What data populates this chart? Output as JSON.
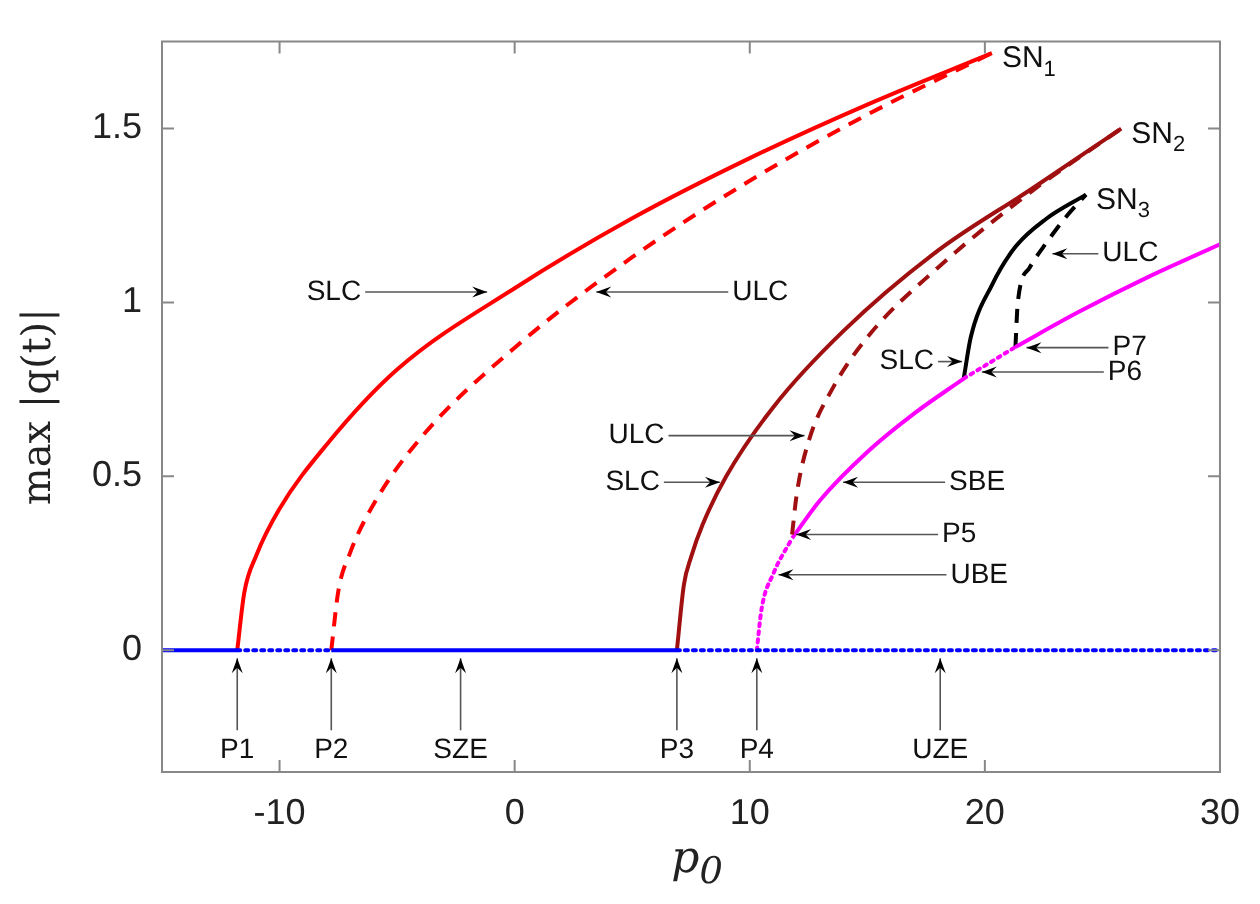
{
  "chart_data": {
    "type": "line",
    "xlabel": "p$_{0}$",
    "ylabel": "max |q(t)|",
    "xlim": [
      -15,
      30
    ],
    "ylim": [
      -0.35,
      1.75
    ],
    "xticks": [
      -10,
      0,
      10,
      20,
      30
    ],
    "yticks": [
      0,
      0.5,
      1,
      1.5
    ],
    "marker": "none",
    "legend": false,
    "series": [
      {
        "color": "#0000ff",
        "line_style": "solid",
        "x": [
          -15,
          -11.8
        ],
        "values": [
          0,
          0
        ]
      },
      {
        "color": "#0000ff",
        "line_style": "dotted",
        "x": [
          -11.8,
          -7.8
        ],
        "values": [
          0,
          0
        ]
      },
      {
        "color": "#0000ff",
        "line_style": "solid",
        "x": [
          -7.8,
          6.9
        ],
        "values": [
          0,
          0
        ]
      },
      {
        "color": "#0000ff",
        "line_style": "dotted",
        "x": [
          6.9,
          30
        ],
        "values": [
          0,
          0
        ]
      },
      {
        "color": "#ff0000",
        "line_style": "solid",
        "x": [
          -11.8,
          -11.5,
          -11,
          -10,
          -8,
          -5,
          0,
          5,
          10,
          15,
          20.3
        ],
        "values": [
          0,
          0.166,
          0.271,
          0.407,
          0.591,
          0.807,
          1.041,
          1.242,
          1.415,
          1.569,
          1.717
        ]
      },
      {
        "color": "#ff0000",
        "line_style": "dashed",
        "x": [
          -7.8,
          -7.5,
          -7,
          -6,
          -4,
          0,
          5,
          10,
          15,
          20.3
        ],
        "values": [
          0,
          0.17,
          0.28,
          0.42,
          0.61,
          0.87,
          1.13,
          1.35,
          1.54,
          1.717
        ]
      },
      {
        "color": "#a01010",
        "line_style": "solid",
        "x": [
          6.9,
          7.2,
          7.5,
          8,
          9,
          11,
          14,
          18,
          22,
          25.8
        ],
        "values": [
          0,
          0.189,
          0.267,
          0.362,
          0.5,
          0.699,
          0.919,
          1.149,
          1.327,
          1.5
        ]
      },
      {
        "color": "#a01010",
        "line_style": "dashed",
        "x": [
          11.8,
          12,
          12.5,
          13.5,
          15,
          18,
          22,
          25.8
        ],
        "values": [
          0.333,
          0.45,
          0.6,
          0.75,
          0.9,
          1.1,
          1.32,
          1.5
        ]
      },
      {
        "color": "#ff00ff",
        "line_style": "dotted",
        "x": [
          10.3,
          10.5,
          11,
          11.8
        ],
        "values": [
          0,
          0.118,
          0.22,
          0.322
        ]
      },
      {
        "color": "#ff00ff",
        "line_style": "solid",
        "x": [
          11.8,
          13,
          15,
          17,
          19.1
        ],
        "values": [
          0.322,
          0.432,
          0.57,
          0.681,
          0.781
        ]
      },
      {
        "color": "#ff00ff",
        "line_style": "dotted",
        "x": [
          19.1,
          21.3
        ],
        "values": [
          0.781,
          0.872
        ]
      },
      {
        "color": "#ff00ff",
        "line_style": "solid",
        "x": [
          21.3,
          24,
          27,
          30
        ],
        "values": [
          0.872,
          0.973,
          1.075,
          1.167
        ]
      },
      {
        "color": "#000000",
        "line_style": "solid",
        "x": [
          19.1,
          19.4,
          20.3,
          21.3,
          22.6,
          24.3
        ],
        "values": [
          0.781,
          0.9,
          1.05,
          1.16,
          1.24,
          1.31
        ]
      },
      {
        "color": "#000000",
        "line_style": "dashed",
        "x": [
          21.3,
          21.4,
          21.9,
          22.6,
          23.5,
          24.3
        ],
        "values": [
          0.872,
          1.0,
          1.1,
          1.17,
          1.25,
          1.31
        ]
      }
    ],
    "annotations": [
      {
        "text": "SN$_{1}$",
        "x": 20.3,
        "y": 1.717
      },
      {
        "text": "SN$_{2}$",
        "x": 25.8,
        "y": 1.5
      },
      {
        "text": "SN$_{3}$",
        "x": 24.3,
        "y": 1.31
      },
      {
        "text": "SLC",
        "x": -1,
        "y": 1.03
      },
      {
        "text": "ULC",
        "x": 3.3,
        "y": 1.03
      },
      {
        "text": "ULC",
        "x": 12.5,
        "y": 0.617
      },
      {
        "text": "SLC",
        "x": 8.9,
        "y": 0.483
      },
      {
        "text": "SBE",
        "x": 13.8,
        "y": 0.483
      },
      {
        "text": "P5",
        "x": 11.8,
        "y": 0.333
      },
      {
        "text": "UBE",
        "x": 11.05,
        "y": 0.217
      },
      {
        "text": "SLC",
        "x": 19.2,
        "y": 0.83
      },
      {
        "text": "P6",
        "x": 19.7,
        "y": 0.8
      },
      {
        "text": "P7",
        "x": 21.6,
        "y": 0.87
      },
      {
        "text": "ULC",
        "x": 22.7,
        "y": 1.14
      },
      {
        "text": "P1",
        "x": -11.8,
        "y": 0
      },
      {
        "text": "P2",
        "x": -7.8,
        "y": 0
      },
      {
        "text": "SZE",
        "x": -2.3,
        "y": 0
      },
      {
        "text": "P3",
        "x": 6.9,
        "y": 0
      },
      {
        "text": "P4",
        "x": 10.3,
        "y": 0
      },
      {
        "text": "UZE",
        "x": 18.1,
        "y": 0
      }
    ]
  }
}
